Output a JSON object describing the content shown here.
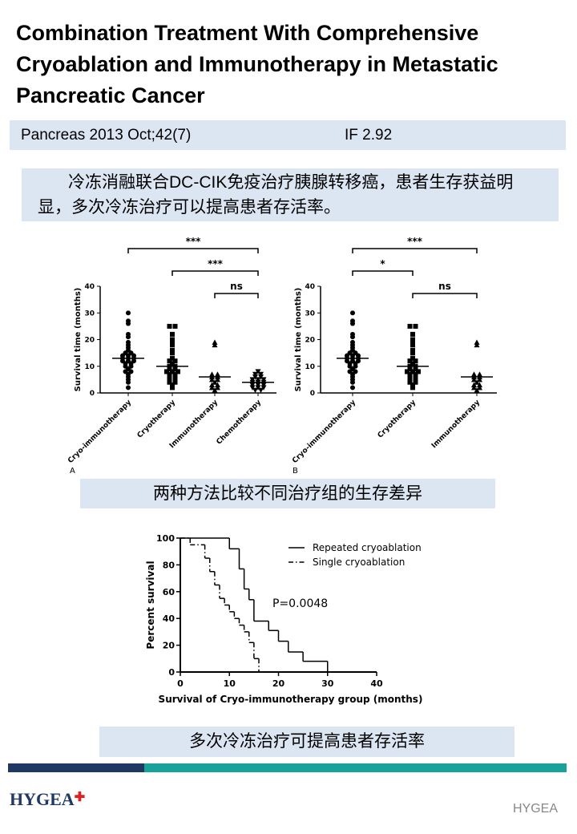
{
  "header": {
    "title": "Combination Treatment With Comprehensive Cryoablation and Immunotherapy in Metastatic Pancreatic Cancer"
  },
  "citation": {
    "journal": "Pancreas 2013 Oct;42(7)",
    "impact": "IF 2.92"
  },
  "summary": "冷冻消融联合DC-CIK免疫治疗胰腺转移癌，患者生存获益明显，多次冷冻治疗可以提高患者存活率。",
  "chart_data": [
    {
      "type": "dot",
      "panel": "A",
      "ylabel": "Survival time (months)",
      "ylim": [
        0,
        40
      ],
      "yticks": [
        0,
        10,
        20,
        30,
        40
      ],
      "categories": [
        "Cryo-immunotherapy",
        "Cryotherapy",
        "Immunotherapy",
        "Chemotherapy"
      ],
      "markers": [
        "circle",
        "square",
        "triangle",
        "triangle-down"
      ],
      "color": "#000000",
      "values": [
        [
          30,
          27,
          26,
          22,
          21,
          19,
          18,
          17,
          16,
          15,
          15,
          14,
          14,
          14,
          13,
          13,
          13,
          12,
          12,
          12,
          11,
          11,
          10,
          10,
          9,
          8,
          8,
          7,
          6,
          5,
          4,
          2
        ],
        [
          25,
          25,
          22,
          20,
          19,
          18,
          16,
          15,
          13,
          12,
          12,
          11,
          10,
          10,
          9,
          9,
          8,
          8,
          8,
          7,
          7,
          6,
          6,
          5,
          5,
          4,
          4,
          3,
          2
        ],
        [
          19,
          18,
          7,
          7,
          6,
          6,
          5,
          5,
          4,
          3,
          3,
          2,
          2,
          1
        ],
        [
          8,
          7,
          7,
          6,
          6,
          5,
          5,
          5,
          4,
          4,
          4,
          3,
          3,
          3,
          2,
          2,
          2,
          1,
          1
        ]
      ],
      "means": [
        13,
        10,
        6,
        4
      ],
      "annotations": [
        "***",
        "***",
        "ns"
      ]
    },
    {
      "type": "dot",
      "panel": "B",
      "ylabel": "Survival time (months)",
      "ylim": [
        0,
        40
      ],
      "yticks": [
        0,
        10,
        20,
        30,
        40
      ],
      "categories": [
        "Cryo-immunotherapy",
        "Cryotherapy",
        "Immunotherapy"
      ],
      "markers": [
        "circle",
        "square",
        "triangle"
      ],
      "color": "#000000",
      "values": [
        [
          30,
          27,
          26,
          22,
          21,
          19,
          18,
          17,
          16,
          15,
          15,
          14,
          14,
          14,
          13,
          13,
          13,
          12,
          12,
          12,
          11,
          11,
          10,
          10,
          9,
          8,
          8,
          7,
          6,
          5,
          4,
          2
        ],
        [
          25,
          25,
          22,
          20,
          19,
          18,
          16,
          15,
          13,
          12,
          12,
          11,
          10,
          10,
          9,
          9,
          8,
          8,
          8,
          7,
          7,
          6,
          6,
          5,
          5,
          4,
          4,
          3,
          2
        ],
        [
          19,
          18,
          7,
          7,
          6,
          6,
          5,
          5,
          4,
          3,
          3,
          2,
          2,
          1
        ]
      ],
      "means": [
        13,
        10,
        6
      ],
      "annotations": [
        "***",
        "*",
        "ns"
      ]
    },
    {
      "type": "step",
      "xlabel": "Survival of Cryo-immunotherapy group (months)",
      "ylabel": "Percent survival",
      "xlim": [
        0,
        40
      ],
      "xticks": [
        0,
        10,
        20,
        30,
        40
      ],
      "ylim": [
        0,
        100
      ],
      "yticks": [
        0,
        20,
        40,
        60,
        80,
        100
      ],
      "annotation": "P=0.0048",
      "series": [
        {
          "name": "Repeated cryoablation",
          "color": "#000000",
          "style": "solid",
          "x": [
            0,
            10,
            12,
            13,
            14,
            15,
            18,
            20,
            22,
            25,
            30
          ],
          "values": [
            100,
            92,
            77,
            62,
            54,
            38,
            31,
            23,
            15,
            8,
            0
          ]
        },
        {
          "name": "Single cryoablation",
          "color": "#000000",
          "style": "dash-dot",
          "x": [
            0,
            2,
            5,
            6,
            7,
            8,
            9,
            10,
            11,
            12,
            13,
            14,
            15,
            16
          ],
          "values": [
            100,
            95,
            85,
            75,
            65,
            55,
            50,
            45,
            40,
            35,
            30,
            22,
            10,
            0
          ]
        }
      ]
    }
  ],
  "captions": [
    "两种方法比较不同治疗组的生存差异",
    "多次冷冻治疗可提高患者存活率"
  ],
  "footer": {
    "logo": "HYGEA",
    "watermark": "HYGEA"
  }
}
